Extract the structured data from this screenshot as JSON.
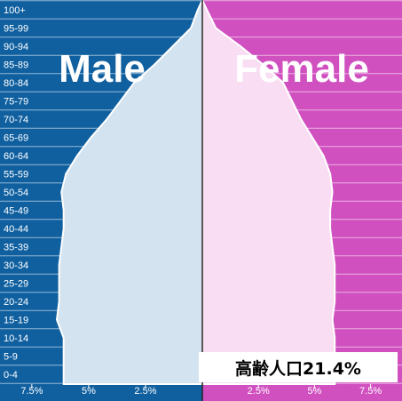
{
  "chart_data": {
    "type": "area",
    "orientation": "horizontal-population-pyramid",
    "age_groups": [
      "100+",
      "95-99",
      "90-94",
      "85-89",
      "80-84",
      "75-79",
      "70-74",
      "65-69",
      "60-64",
      "55-59",
      "50-54",
      "45-49",
      "40-44",
      "35-39",
      "30-34",
      "25-29",
      "20-24",
      "15-19",
      "10-14",
      "5-9",
      "0-4"
    ],
    "series": [
      {
        "name": "Male",
        "side": "left",
        "values": [
          0.2,
          0.5,
          1.3,
          2.1,
          3.0,
          3.6,
          4.2,
          4.9,
          5.5,
          6.0,
          6.2,
          6.1,
          6.1,
          6.2,
          6.3,
          6.3,
          6.3,
          6.4,
          6.1,
          6.1,
          6.1
        ]
      },
      {
        "name": "Female",
        "side": "right",
        "values": [
          0.2,
          0.6,
          1.7,
          2.7,
          3.6,
          4.0,
          4.4,
          4.9,
          5.4,
          5.7,
          5.8,
          5.7,
          5.7,
          5.8,
          5.9,
          5.9,
          5.9,
          5.8,
          5.9,
          5.9,
          5.9
        ]
      }
    ],
    "x_ticks_left": [
      "7.5%",
      "5%",
      "2.5%"
    ],
    "x_ticks_right": [
      "2.5%",
      "5%",
      "7.5%"
    ],
    "x_tick_values": [
      7.5,
      5,
      2.5
    ],
    "xlim_percent": [
      0,
      8.9
    ],
    "side_labels": {
      "left": "Male",
      "right": "Female"
    },
    "annotation": "高齢人口21.4%",
    "colors": {
      "male_bg": "#1060a0",
      "female_bg": "#d050c0",
      "male_fill": "#d3e3f0",
      "female_fill": "#f8ddf3",
      "outline": "#ffffff",
      "annotation_bg": "#ffffff"
    },
    "grid": true
  }
}
